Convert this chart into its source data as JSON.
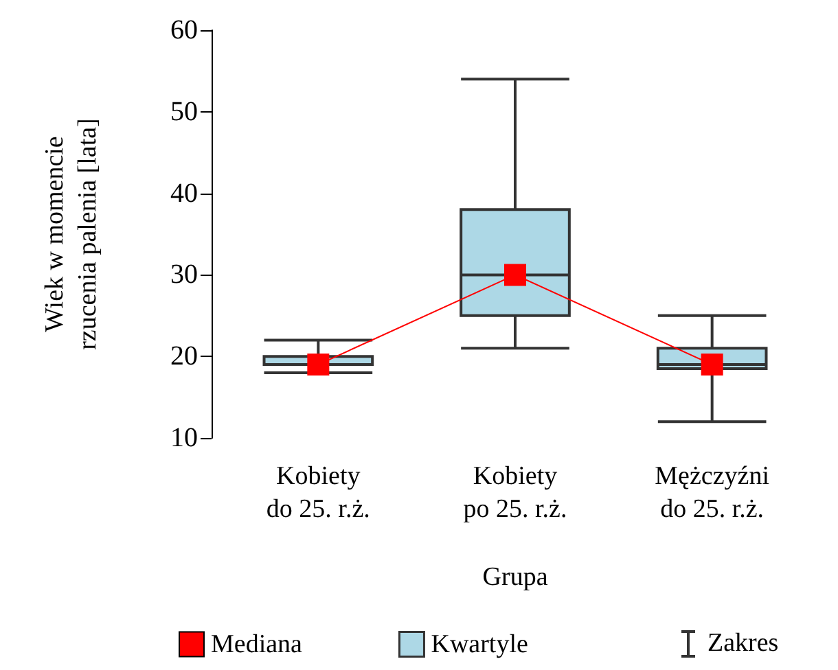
{
  "chart_data": {
    "type": "box",
    "xlabel": "Grupa",
    "ylabel": "Wiek w momencie\nrzucenia palenia [lata]",
    "categories": [
      "Kobiety\ndo 25. r.ż.",
      "Kobiety\npo 25. r.ż.",
      "Mężczyźni\ndo 25. r.ż."
    ],
    "series": [
      {
        "name": "Kwartyle",
        "color": "#add8e6",
        "boxes": [
          {
            "low": 18,
            "q1": 19,
            "median": 19,
            "q3": 20,
            "high": 22
          },
          {
            "low": 21,
            "q1": 25,
            "median": 30,
            "q3": 38,
            "high": 54
          },
          {
            "low": 12,
            "q1": 18.5,
            "median": 19,
            "q3": 21,
            "high": 25
          }
        ]
      },
      {
        "type": "line",
        "name": "Mediana",
        "color": "#ff0000",
        "marker": "square",
        "values": [
          19,
          30,
          19
        ]
      }
    ],
    "annotations": [
      "Zakres"
    ],
    "ylim": [
      10,
      60
    ],
    "yticks": [
      10,
      20,
      30,
      40,
      50,
      60
    ],
    "grid": false,
    "legend": "bottom"
  }
}
